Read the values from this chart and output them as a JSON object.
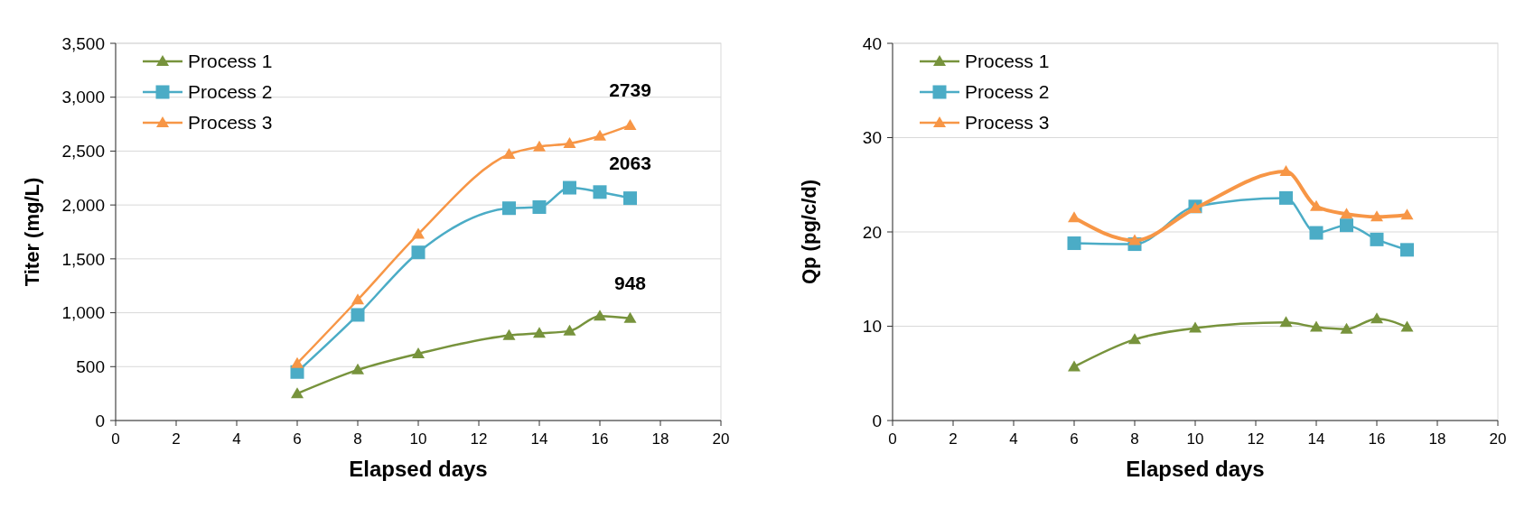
{
  "chart_data": [
    {
      "type": "line",
      "xlabel": "Elapsed days",
      "ylabel": "Titer (mg/L)",
      "x": [
        6,
        8,
        10,
        13,
        14,
        15,
        16,
        17
      ],
      "xlim": [
        0,
        20
      ],
      "xticks": [
        0,
        2,
        4,
        6,
        8,
        10,
        12,
        14,
        16,
        18,
        20
      ],
      "ylim": [
        0,
        3500
      ],
      "yticks": [
        0,
        500,
        {
          "value": 1000,
          "label": "1,000"
        },
        {
          "value": 1500,
          "label": "1,500"
        },
        {
          "value": 2000,
          "label": "2,000"
        },
        {
          "value": 2500,
          "label": "2,500"
        },
        {
          "value": 3000,
          "label": "3,000"
        },
        {
          "value": 3500,
          "label": "3,500"
        }
      ],
      "grid": "y",
      "legend": "top left",
      "series": [
        {
          "name": "Process 1",
          "color": "#77933c",
          "marker": "triangle",
          "values": [
            250,
            470,
            620,
            790,
            810,
            830,
            970,
            948
          ],
          "value_labels": [
            null,
            null,
            null,
            null,
            null,
            null,
            null,
            "948"
          ]
        },
        {
          "name": "Process 2",
          "color": "#4bacc6",
          "marker": "square",
          "values": [
            450,
            980,
            1560,
            1970,
            1980,
            2160,
            2120,
            2063
          ],
          "value_labels": [
            null,
            null,
            null,
            null,
            null,
            null,
            null,
            "2063"
          ]
        },
        {
          "name": "Process 3",
          "color": "#f79646",
          "marker": "triangle",
          "values": [
            530,
            1120,
            1730,
            2470,
            2540,
            2570,
            2640,
            2739
          ],
          "value_labels": [
            null,
            null,
            null,
            null,
            null,
            null,
            null,
            "2739"
          ]
        }
      ]
    },
    {
      "type": "line",
      "xlabel": "Elapsed days",
      "ylabel": "Qp (pg/c/d)",
      "x": [
        6,
        8,
        10,
        13,
        14,
        15,
        16,
        17
      ],
      "xlim": [
        0,
        20
      ],
      "xticks": [
        0,
        2,
        4,
        6,
        8,
        10,
        12,
        14,
        16,
        18,
        20
      ],
      "ylim": [
        0,
        40
      ],
      "yticks": [
        0,
        10,
        20,
        30,
        40
      ],
      "grid": "y",
      "legend": "top left",
      "series": [
        {
          "name": "Process 1",
          "color": "#77933c",
          "marker": "triangle",
          "values": [
            5.7,
            8.6,
            9.8,
            10.4,
            9.9,
            9.7,
            10.8,
            9.9
          ]
        },
        {
          "name": "Process 2",
          "color": "#4bacc6",
          "marker": "square",
          "values": [
            18.8,
            18.7,
            22.7,
            23.6,
            19.9,
            20.7,
            19.2,
            18.1
          ]
        },
        {
          "name": "Process 3",
          "color": "#f79646",
          "marker": "triangle",
          "values": [
            21.5,
            19.1,
            22.5,
            26.4,
            22.7,
            21.9,
            21.6,
            21.8
          ]
        }
      ]
    }
  ]
}
